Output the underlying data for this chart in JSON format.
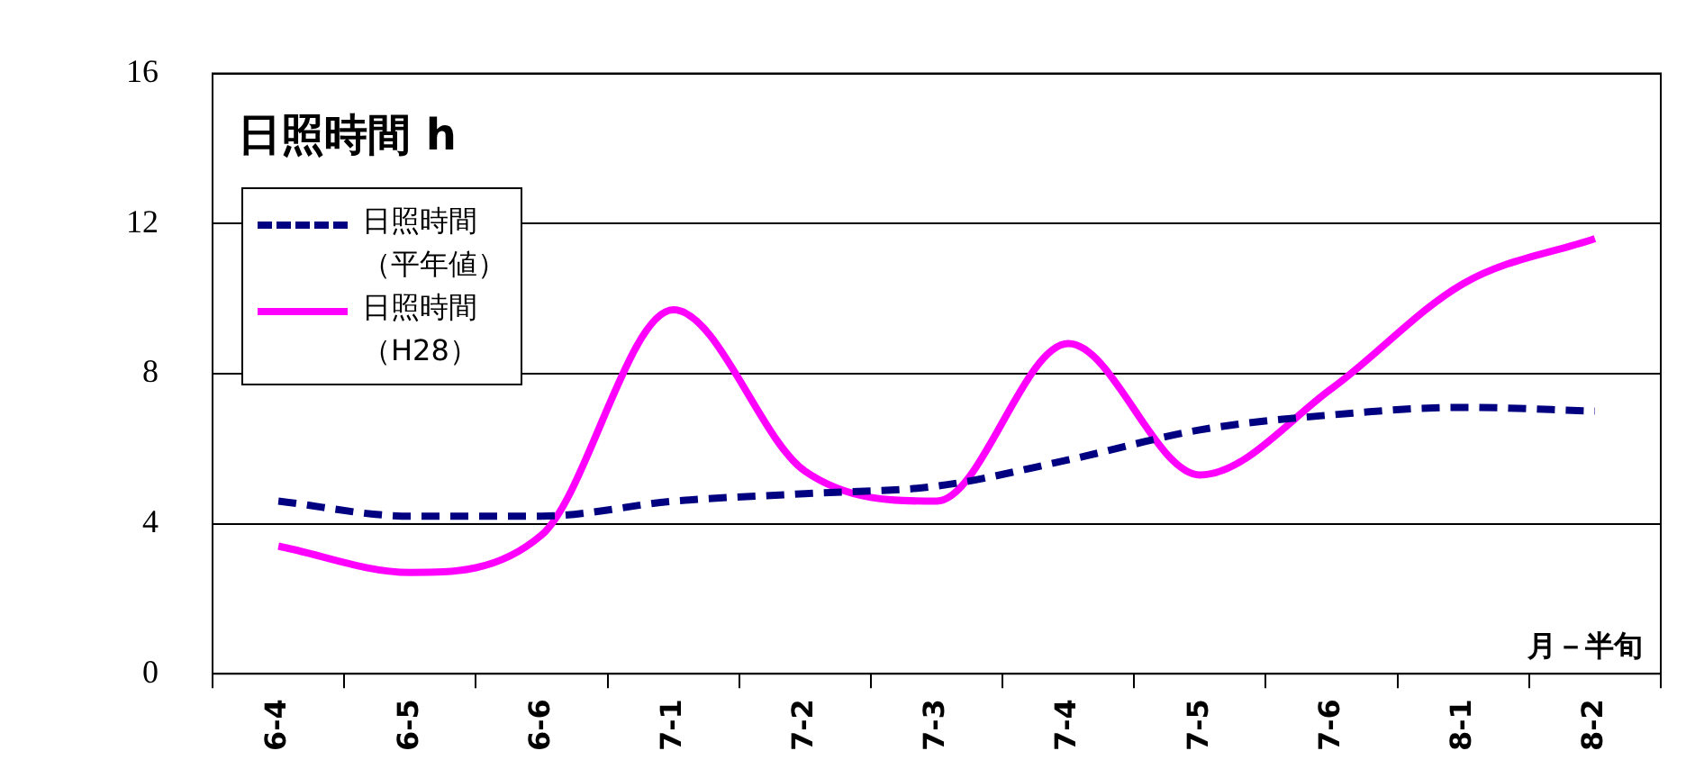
{
  "chart_data": {
    "type": "line",
    "title": "日照時間 h",
    "xlabel": "月－半旬",
    "categories": [
      "6-4",
      "6-5",
      "6-6",
      "7-1",
      "7-2",
      "7-3",
      "7-4",
      "7-5",
      "7-6",
      "8-1",
      "8-2"
    ],
    "series": [
      {
        "name": "日照時間（平年値）",
        "color": "#000080",
        "line_style": "dashed",
        "values": [
          4.6,
          4.2,
          4.2,
          4.6,
          4.8,
          5.0,
          5.7,
          6.5,
          6.9,
          7.1,
          7.0
        ]
      },
      {
        "name": "日照時間（H28）",
        "color": "#ff00ff",
        "line_style": "solid",
        "values": [
          3.4,
          2.7,
          3.7,
          9.7,
          5.4,
          4.6,
          8.8,
          5.3,
          7.6,
          10.4,
          11.6
        ]
      }
    ],
    "ylim": [
      0,
      16
    ],
    "yticks": [
      0,
      4,
      8,
      12,
      16
    ],
    "grid": "y",
    "legend": "top left",
    "marker": "none"
  }
}
